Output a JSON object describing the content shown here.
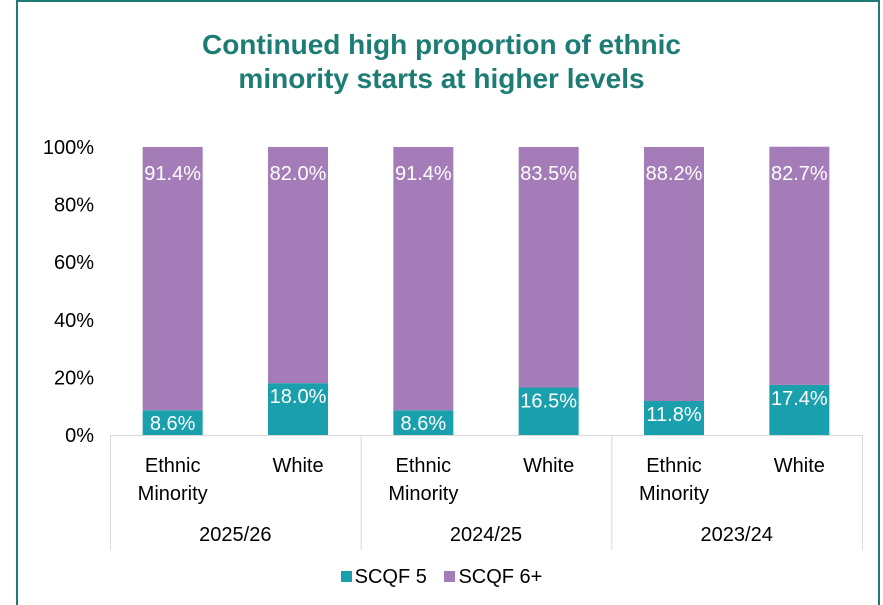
{
  "chart_data": {
    "type": "bar",
    "stacked": true,
    "title": "Continued high proportion of ethnic minority starts at higher levels",
    "title_lines": [
      "Continued high proportion of ethnic",
      "minority starts at higher levels"
    ],
    "ylim": [
      0,
      100
    ],
    "yticks": [
      "0%",
      "20%",
      "40%",
      "60%",
      "80%",
      "100%"
    ],
    "ytick_values": [
      0,
      20,
      40,
      60,
      80,
      100
    ],
    "groups": [
      {
        "label": "2025/26",
        "categories": [
          [
            "Ethnic",
            "Minority"
          ],
          [
            "White"
          ]
        ]
      },
      {
        "label": "2024/25",
        "categories": [
          [
            "Ethnic",
            "Minority"
          ],
          [
            "White"
          ]
        ]
      },
      {
        "label": "2023/24",
        "categories": [
          [
            "Ethnic",
            "Minority"
          ],
          [
            "White"
          ]
        ]
      }
    ],
    "series": [
      {
        "name": "SCQF 5",
        "color": "#1aa0ad",
        "values": [
          8.6,
          18.0,
          8.6,
          16.5,
          11.8,
          17.4
        ],
        "labels": [
          "8.6%",
          "18.0%",
          "8.6%",
          "16.5%",
          "11.8%",
          "17.4%"
        ]
      },
      {
        "name": "SCQF 6+",
        "color": "#a47db8",
        "values": [
          91.4,
          82.0,
          91.4,
          83.5,
          88.2,
          82.7
        ],
        "labels": [
          "91.4%",
          "82.0%",
          "91.4%",
          "83.5%",
          "88.2%",
          "82.7%"
        ]
      }
    ],
    "grid": false,
    "legend_position": "bottom"
  }
}
